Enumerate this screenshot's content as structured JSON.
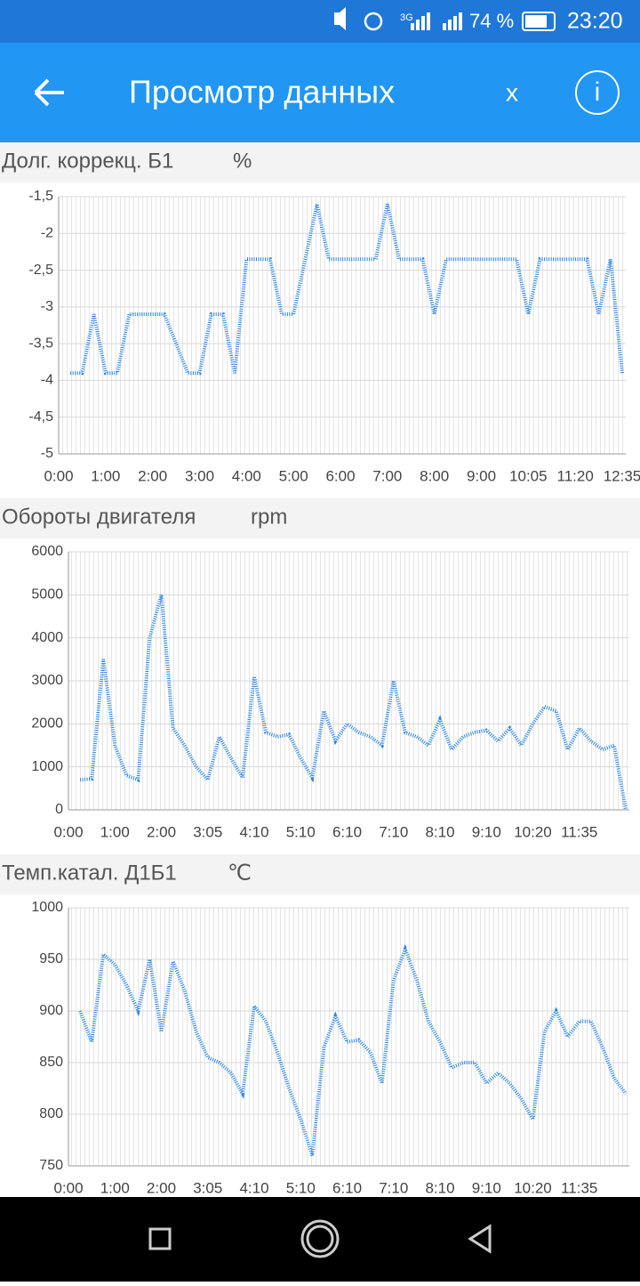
{
  "status_bar": {
    "network": "3G",
    "battery": "74 %",
    "time": "23:20"
  },
  "app_bar": {
    "title": "Просмотр данных",
    "close": "x",
    "info": "i"
  },
  "chart_data": [
    {
      "type": "line",
      "title": "Долг. коррекц. Б1",
      "unit": "%",
      "color": "#2a86e6",
      "grid": true,
      "categories": [
        "0:00",
        null,
        null,
        null,
        "1:00",
        null,
        null,
        null,
        "2:00",
        null,
        null,
        null,
        "3:00",
        null,
        null,
        null,
        "4:00",
        null,
        null,
        null,
        "5:00",
        null,
        null,
        null,
        "6:00",
        null,
        null,
        null,
        "7:00",
        null,
        null,
        null,
        "8:00",
        null,
        null,
        null,
        "9:00",
        null,
        null,
        null,
        "10:05",
        null,
        null,
        null,
        "11:20",
        null,
        null,
        null,
        "12:35"
      ],
      "values": [
        null,
        -3.9,
        -3.9,
        -3.1,
        -3.9,
        -3.9,
        -3.1,
        -3.1,
        -3.1,
        -3.1,
        -3.5,
        -3.9,
        -3.9,
        -3.1,
        -3.1,
        -3.9,
        -2.35,
        -2.35,
        -2.35,
        -3.1,
        -3.1,
        -2.35,
        -1.6,
        -2.35,
        -2.35,
        -2.35,
        -2.35,
        -2.35,
        -1.6,
        -2.35,
        -2.35,
        -2.35,
        -3.1,
        -2.35,
        -2.35,
        -2.35,
        -2.35,
        -2.35,
        -2.35,
        -2.35,
        -3.1,
        -2.35,
        -2.35,
        -2.35,
        -2.35,
        -2.35,
        -3.1,
        -2.35,
        -3.9
      ],
      "ylim": [
        -5,
        -1.5
      ],
      "yticks": [
        {
          "value": -5,
          "label": "-5"
        },
        {
          "value": -4.5,
          "label": "-4,5"
        },
        {
          "value": -4,
          "label": "-4"
        },
        {
          "value": -3.5,
          "label": "-3,5"
        },
        {
          "value": -3,
          "label": "-3"
        },
        {
          "value": -2.5,
          "label": "-2,5"
        },
        {
          "value": -2,
          "label": "-2"
        },
        {
          "value": -1.5,
          "label": "-1,5"
        }
      ]
    },
    {
      "type": "line",
      "title": "Обороты двигателя",
      "unit": "rpm",
      "color": "#2a86e6",
      "grid": true,
      "categories": [
        "0:00",
        null,
        null,
        null,
        "1:00",
        null,
        null,
        null,
        "2:00",
        null,
        null,
        null,
        "3:05",
        null,
        null,
        null,
        "4:10",
        null,
        null,
        null,
        "5:10",
        null,
        null,
        null,
        "6:10",
        null,
        null,
        null,
        "7:10",
        null,
        null,
        null,
        "8:10",
        null,
        null,
        null,
        "9:10",
        null,
        null,
        null,
        "10:20",
        null,
        null,
        null,
        "11:35",
        null,
        null,
        null,
        null
      ],
      "values": [
        null,
        700,
        720,
        3500,
        1500,
        800,
        700,
        4000,
        5000,
        1900,
        1500,
        1000,
        700,
        1700,
        1200,
        750,
        3100,
        1800,
        1700,
        1750,
        1200,
        750,
        2300,
        1600,
        2000,
        1800,
        1700,
        1500,
        3000,
        1800,
        1700,
        1500,
        2100,
        1400,
        1700,
        1800,
        1850,
        1600,
        1900,
        1500,
        2000,
        2400,
        2300,
        1400,
        1900,
        1600,
        1400,
        1500,
        0
      ],
      "ylim": [
        0,
        6000
      ],
      "yticks": [
        0,
        1000,
        2000,
        3000,
        4000,
        5000,
        6000
      ]
    },
    {
      "type": "line",
      "title": "Темп.катал. Д1Б1",
      "unit": "℃",
      "color": "#2a86e6",
      "grid": true,
      "categories": [
        "0:00",
        null,
        null,
        null,
        "1:00",
        null,
        null,
        null,
        "2:00",
        null,
        null,
        null,
        "3:05",
        null,
        null,
        null,
        "4:10",
        null,
        null,
        null,
        "5:10",
        null,
        null,
        null,
        "6:10",
        null,
        null,
        null,
        "7:10",
        null,
        null,
        null,
        "8:10",
        null,
        null,
        null,
        "9:10",
        null,
        null,
        null,
        "10:20",
        null,
        null,
        null,
        "11:35",
        null,
        null,
        null,
        null
      ],
      "values": [
        null,
        900,
        870,
        955,
        945,
        925,
        900,
        950,
        880,
        948,
        920,
        880,
        855,
        850,
        840,
        820,
        905,
        890,
        860,
        825,
        795,
        760,
        865,
        895,
        870,
        872,
        860,
        830,
        930,
        960,
        930,
        890,
        870,
        845,
        850,
        850,
        830,
        840,
        830,
        815,
        795,
        880,
        900,
        875,
        890,
        890,
        865,
        835,
        820
      ],
      "ylim": [
        750,
        1000
      ],
      "yticks": [
        750,
        800,
        850,
        900,
        950,
        1000
      ]
    }
  ]
}
